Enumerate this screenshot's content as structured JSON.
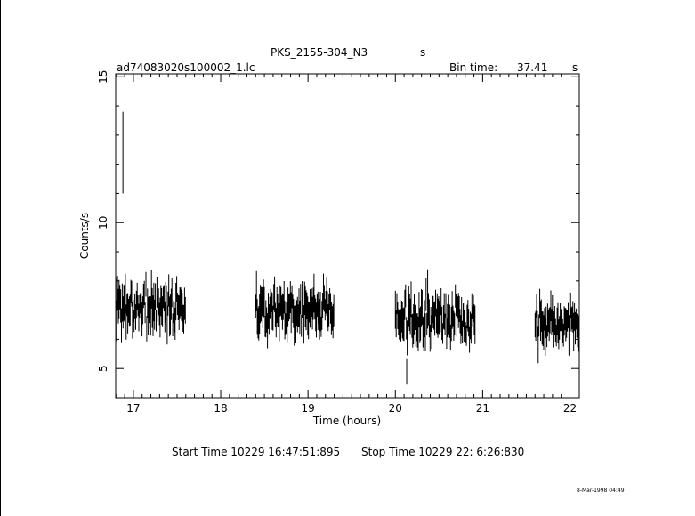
{
  "header": {
    "source_name": "PKS_2155-304_N3",
    "source_suffix": "s",
    "file_name": "ad74083020s100002_1.lc",
    "bin_time_label": "Bin time:",
    "bin_time_value": "37.41",
    "bin_time_unit": "s"
  },
  "footer": {
    "start_time": "Start Time 10229 16:47:51:895",
    "stop_time": "Stop Time 10229 22: 6:26:830",
    "date_stamp": "8-Mar-1998 04:49"
  },
  "chart_data": {
    "type": "scatter",
    "title": "PKS_2155-304_N3",
    "xlabel": "Time (hours)",
    "ylabel": "Counts/s",
    "xlim": [
      16.797,
      22.107
    ],
    "ylim": [
      4.0,
      15.1
    ],
    "x_ticks": [
      17,
      18,
      19,
      20,
      21,
      22
    ],
    "y_ticks": [
      5,
      10,
      15
    ],
    "grid": false,
    "legend": "none",
    "error_bars": true,
    "segments": [
      {
        "start": 16.8,
        "end": 17.6,
        "mean": 7.1,
        "spread": 0.9
      },
      {
        "start": 18.4,
        "end": 19.3,
        "mean": 7.0,
        "spread": 0.8
      },
      {
        "start": 20.0,
        "end": 20.92,
        "mean": 6.7,
        "spread": 0.8
      },
      {
        "start": 21.6,
        "end": 22.107,
        "mean": 6.6,
        "spread": 0.8
      }
    ],
    "outliers": [
      {
        "x": 16.88,
        "y": 12.4,
        "err": 1.4
      },
      {
        "x": 20.13,
        "y": 4.9,
        "err": 0.45
      },
      {
        "x": 20.37,
        "y": 7.8,
        "err": 0.6
      }
    ]
  }
}
